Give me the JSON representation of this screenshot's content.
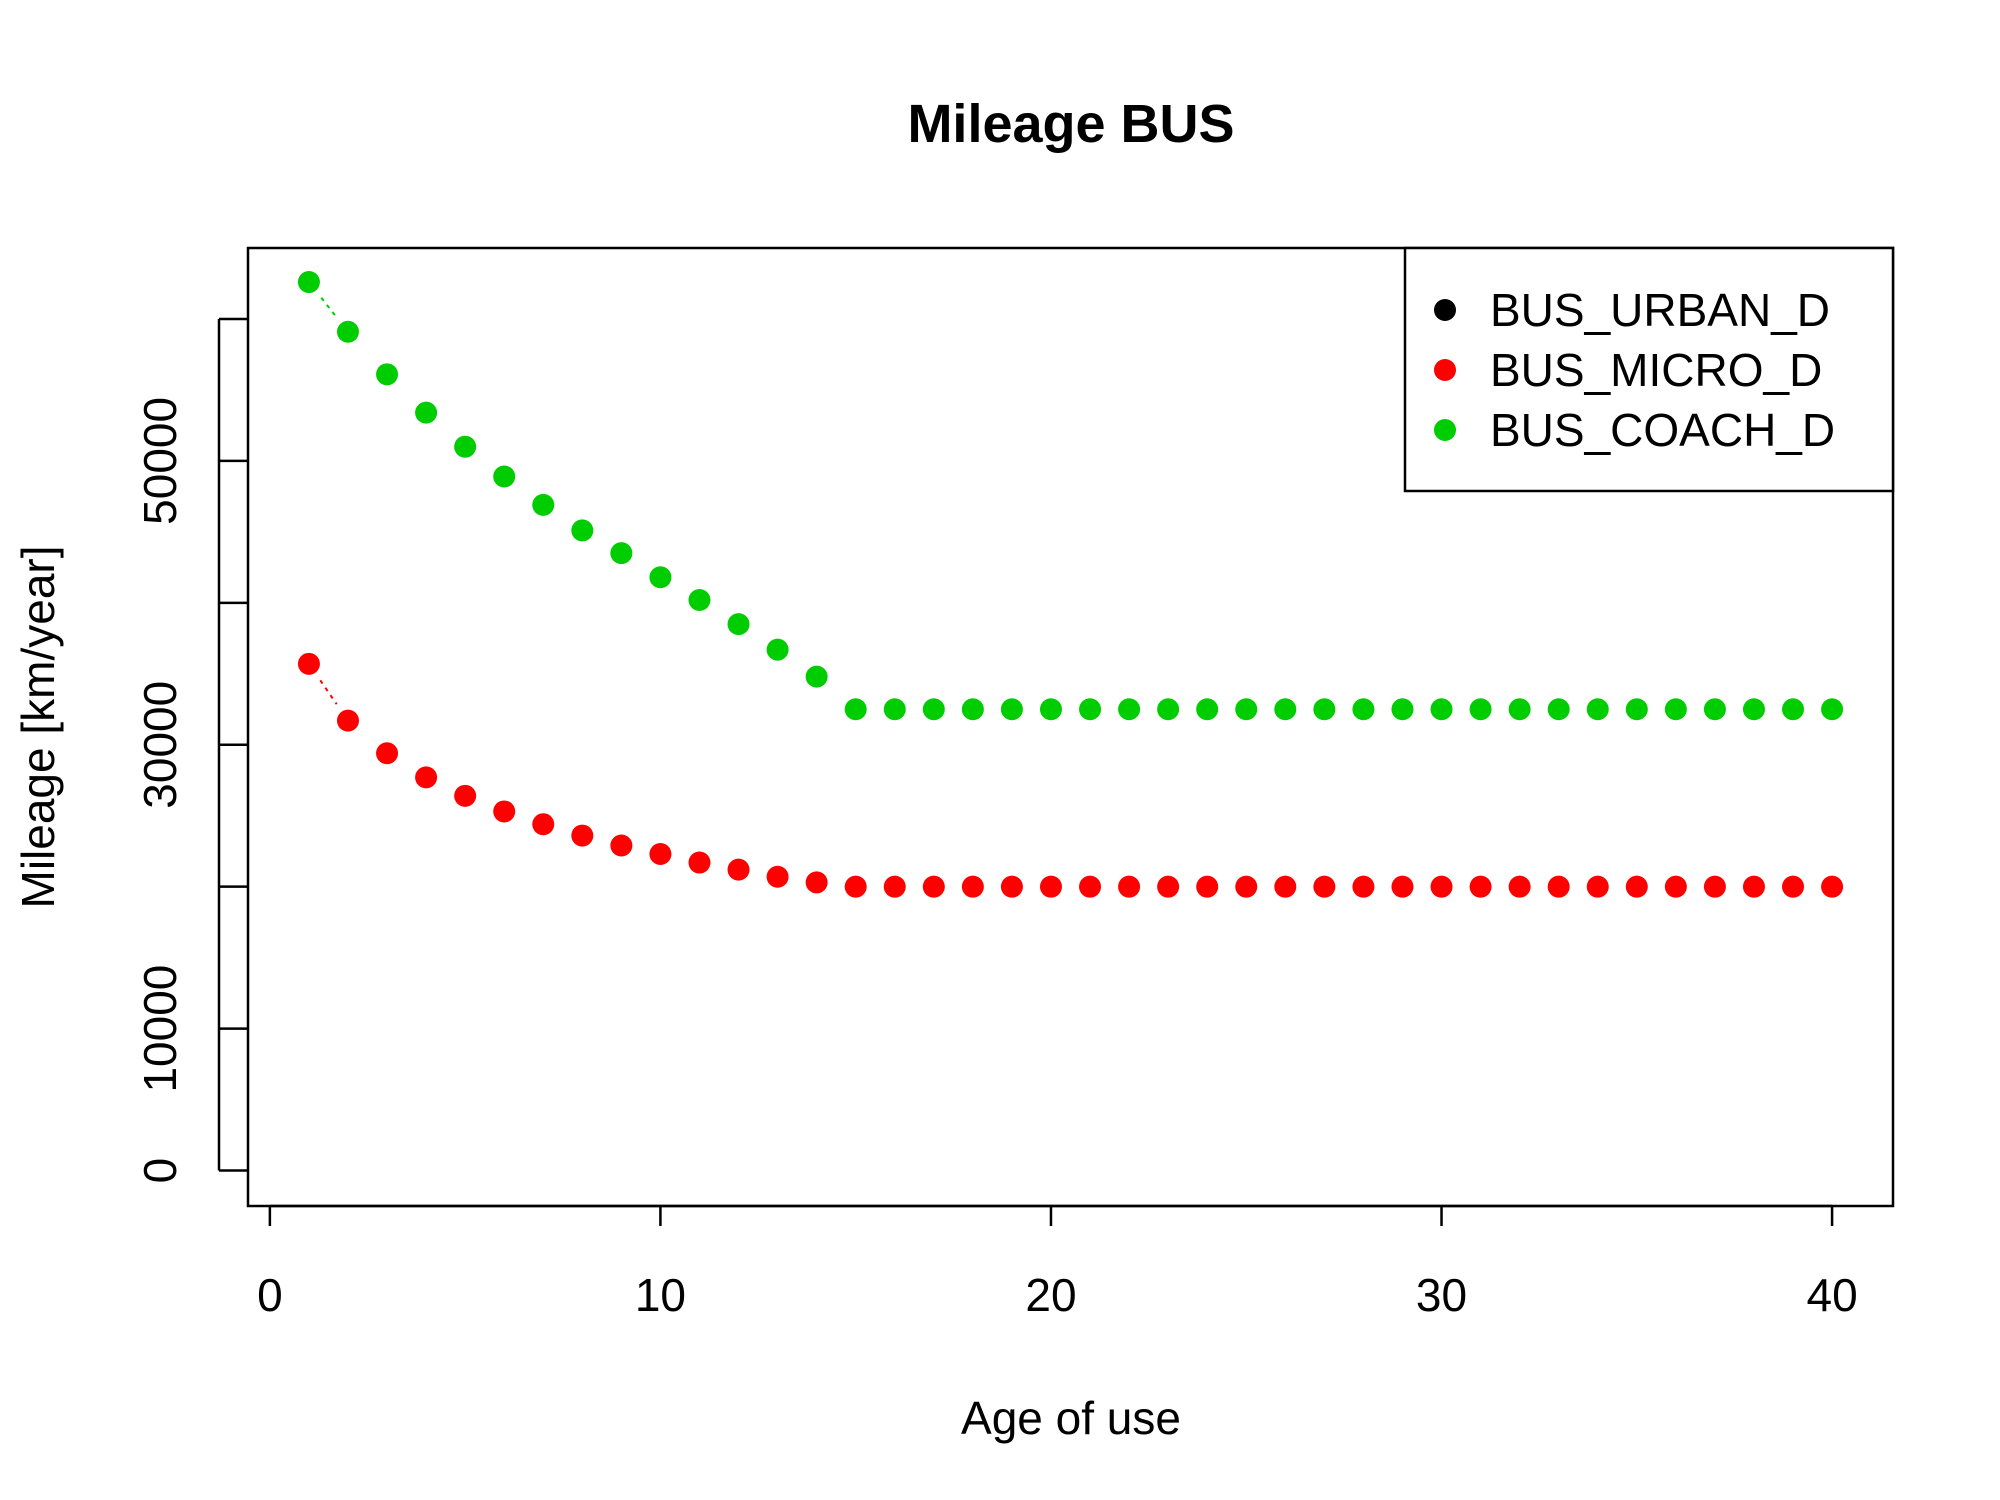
{
  "chart_data": {
    "type": "scatter",
    "title": "Mileage BUS",
    "xlabel": "Age of use",
    "ylabel": "Mileage [km/year]",
    "xlim": [
      -0.56,
      41.56
    ],
    "ylim": [
      -2500,
      65000
    ],
    "xticks": [
      0,
      10,
      20,
      30,
      40
    ],
    "yticks": [
      0,
      10000,
      30000,
      50000
    ],
    "ytick_marks": [
      0,
      10000,
      20000,
      30000,
      40000,
      50000,
      60000
    ],
    "x": [
      1,
      2,
      3,
      4,
      5,
      6,
      7,
      8,
      9,
      10,
      11,
      12,
      13,
      14,
      15,
      16,
      17,
      18,
      19,
      20,
      21,
      22,
      23,
      24,
      25,
      26,
      27,
      28,
      29,
      30,
      31,
      32,
      33,
      34,
      35,
      36,
      37,
      38,
      39,
      40
    ],
    "series": [
      {
        "name": "BUS_URBAN_D",
        "color": "#000000",
        "values": []
      },
      {
        "name": "BUS_MICRO_D",
        "color": "#ff0000",
        "values": [
          35700,
          31700,
          29400,
          27700,
          26400,
          25300,
          24400,
          23600,
          22900,
          22300,
          21700,
          21200,
          20700,
          20300,
          20000,
          20000,
          20000,
          20000,
          20000,
          20000,
          20000,
          20000,
          20000,
          20000,
          20000,
          20000,
          20000,
          20000,
          20000,
          20000,
          20000,
          20000,
          20000,
          20000,
          20000,
          20000,
          20000,
          20000,
          20000,
          20000
        ]
      },
      {
        "name": "BUS_COACH_D",
        "color": "#00cd00",
        "values": [
          62600,
          59100,
          56100,
          53400,
          51000,
          48900,
          46900,
          45100,
          43500,
          41800,
          40200,
          38500,
          36700,
          34800,
          32500,
          32500,
          32500,
          32500,
          32500,
          32500,
          32500,
          32500,
          32500,
          32500,
          32500,
          32500,
          32500,
          32500,
          32500,
          32500,
          32500,
          32500,
          32500,
          32500,
          32500,
          32500,
          32500,
          32500,
          32500,
          32500
        ]
      }
    ],
    "legend_position": "top-right",
    "grid": false
  }
}
